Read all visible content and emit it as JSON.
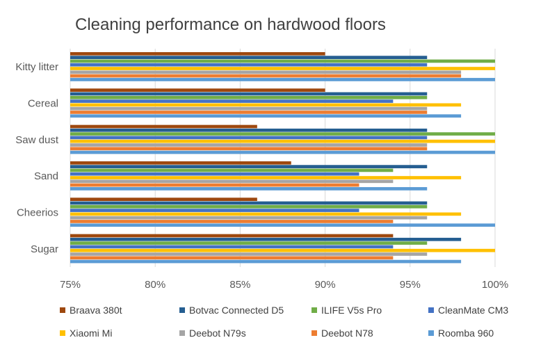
{
  "chart_data": {
    "type": "bar",
    "orientation": "horizontal",
    "title": "Cleaning performance on hardwood floors",
    "categories": [
      "Kitty litter",
      "Cereal",
      "Saw dust",
      "Sand",
      "Cheerios",
      "Sugar"
    ],
    "xlim": [
      75,
      100
    ],
    "x_ticks": [
      "75%",
      "80%",
      "85%",
      "90%",
      "95%",
      "100%"
    ],
    "x_tick_values": [
      75,
      80,
      85,
      90,
      95,
      100
    ],
    "grid": "vertical",
    "legend_position": "bottom",
    "series": [
      {
        "name": "Braava 380t",
        "color": "#9E480E",
        "values": [
          90,
          90,
          86,
          88,
          86,
          94
        ]
      },
      {
        "name": "Botvac Connected D5",
        "color": "#255E91",
        "values": [
          96,
          96,
          96,
          96,
          96,
          98
        ]
      },
      {
        "name": "ILIFE V5s Pro",
        "color": "#70AD47",
        "values": [
          100,
          96,
          100,
          94,
          96,
          96
        ]
      },
      {
        "name": "CleanMate CM3",
        "color": "#4472C4",
        "values": [
          96,
          94,
          96,
          92,
          92,
          94
        ]
      },
      {
        "name": "Xiaomi Mi",
        "color": "#FFC000",
        "values": [
          100,
          98,
          100,
          98,
          98,
          100
        ]
      },
      {
        "name": "Deebot N79s",
        "color": "#A5A5A5",
        "values": [
          98,
          96,
          96,
          94,
          96,
          96
        ]
      },
      {
        "name": "Deebot N78",
        "color": "#ED7D31",
        "values": [
          98,
          96,
          96,
          92,
          94,
          94
        ]
      },
      {
        "name": "Roomba 960",
        "color": "#5B9BD5",
        "values": [
          100,
          98,
          100,
          96,
          100,
          98
        ]
      }
    ]
  }
}
